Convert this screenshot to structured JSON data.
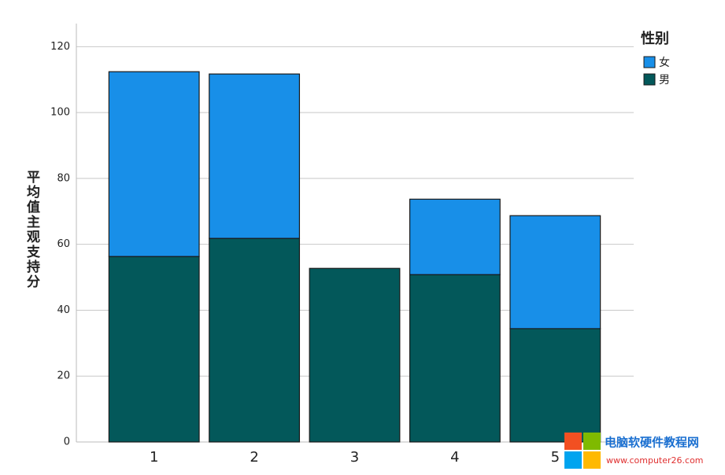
{
  "chart_data": {
    "type": "stacked_bar",
    "y_label": "平均值主观支持分",
    "categories": [
      "1",
      "2",
      "3",
      "4",
      "5"
    ],
    "legend_title": "性别",
    "series": [
      {
        "name": "男",
        "color": "#03585a",
        "values": [
          56.3,
          61.8,
          52.7,
          50.8,
          34.4
        ]
      },
      {
        "name": "女",
        "color": "#188fe8",
        "values": [
          56.1,
          49.9,
          0,
          22.9,
          34.3
        ]
      }
    ],
    "ylim": [
      0,
      127
    ],
    "yticks": [
      0,
      20,
      40,
      60,
      80,
      100,
      120
    ],
    "grid": true,
    "legend_position": "right"
  },
  "watermark": {
    "title": "电脑软硬件教程网",
    "url": "www.computer26.com"
  }
}
